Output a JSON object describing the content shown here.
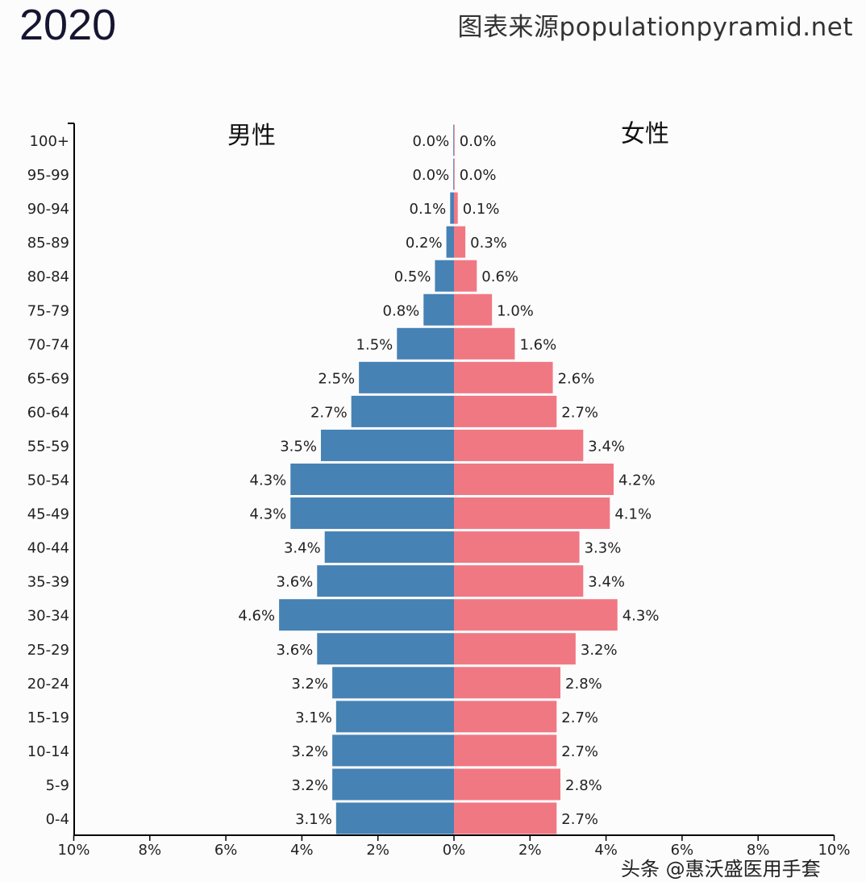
{
  "header": {
    "year": "2020",
    "source": "图表来源populationpyramid.net"
  },
  "watermark": "头条 @惠沃盛医用手套",
  "chart_data": {
    "type": "bar",
    "orientation": "horizontal-pyramid",
    "title": "2020",
    "categories": [
      "100+",
      "95-99",
      "90-94",
      "85-89",
      "80-84",
      "75-79",
      "70-74",
      "65-69",
      "60-64",
      "55-59",
      "50-54",
      "45-49",
      "40-44",
      "35-39",
      "30-34",
      "25-29",
      "20-24",
      "15-19",
      "10-14",
      "5-9",
      "0-4"
    ],
    "series": [
      {
        "name": "男性",
        "side": "left",
        "color": "#4682b4",
        "values": [
          0.0,
          0.0,
          0.1,
          0.2,
          0.5,
          0.8,
          1.5,
          2.5,
          2.7,
          3.5,
          4.3,
          4.3,
          3.4,
          3.6,
          4.6,
          3.6,
          3.2,
          3.1,
          3.2,
          3.2,
          3.1
        ]
      },
      {
        "name": "女性",
        "side": "right",
        "color": "#f07883",
        "values": [
          0.0,
          0.0,
          0.1,
          0.3,
          0.6,
          1.0,
          1.6,
          2.6,
          2.7,
          3.4,
          4.2,
          4.1,
          3.3,
          3.4,
          4.3,
          3.2,
          2.8,
          2.7,
          2.7,
          2.8,
          2.7
        ]
      }
    ],
    "x_ticks": [
      "10%",
      "8%",
      "6%",
      "4%",
      "2%",
      "0%",
      "2%",
      "4%",
      "6%",
      "8%",
      "10%"
    ],
    "xlim": [
      -10,
      10
    ],
    "unit": "%",
    "grid": false
  }
}
